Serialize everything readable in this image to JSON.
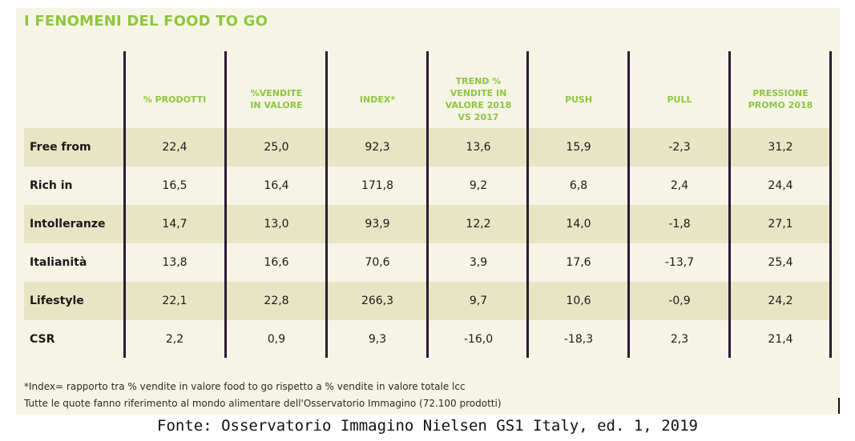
{
  "title": "I FENOMENI DEL FOOD TO GO",
  "colors": {
    "accent": "#8dc63f",
    "background": "#f6f5e5",
    "row_shade": "#e7e5c4",
    "divider": "#2b1a33"
  },
  "chart_data": {
    "type": "table",
    "title": "I FENOMENI DEL FOOD TO GO",
    "columns": [
      "% PRODOTTI",
      "%VENDITE\nIN VALORE",
      "INDEX*",
      "TREND %\nVENDITE IN\nVALORE 2018\nVS 2017",
      "PUSH",
      "PULL",
      "PRESSIONE\nPROMO 2018"
    ],
    "rows": [
      {
        "label": "Free from",
        "values": [
          "22,4",
          "25,0",
          "92,3",
          "13,6",
          "15,9",
          "-2,3",
          "31,2"
        ]
      },
      {
        "label": "Rich in",
        "values": [
          "16,5",
          "16,4",
          "171,8",
          "9,2",
          "6,8",
          "2,4",
          "24,4"
        ]
      },
      {
        "label": "Intolleranze",
        "values": [
          "14,7",
          "13,0",
          "93,9",
          "12,2",
          "14,0",
          "-1,8",
          "27,1"
        ]
      },
      {
        "label": "Italianità",
        "values": [
          "13,8",
          "16,6",
          "70,6",
          "3,9",
          "17,6",
          "-13,7",
          "25,4"
        ]
      },
      {
        "label": "Lifestyle",
        "values": [
          "22,1",
          "22,8",
          "266,3",
          "9,7",
          "10,6",
          "-0,9",
          "24,2"
        ]
      },
      {
        "label": "CSR",
        "values": [
          "2,2",
          "0,9",
          "9,3",
          "-16,0",
          "-18,3",
          "2,3",
          "21,4"
        ]
      }
    ]
  },
  "notes": [
    "*Index= rapporto tra % vendite in valore food to go rispetto a % vendite in valore totale lcc",
    "Tutte le quote fanno riferimento al mondo alimentare dell'Osservatorio Immagino (72.100 prodotti)"
  ],
  "source": "Fonte: Osservatorio Immagino Nielsen GS1 Italy, ed. 1, 2019"
}
